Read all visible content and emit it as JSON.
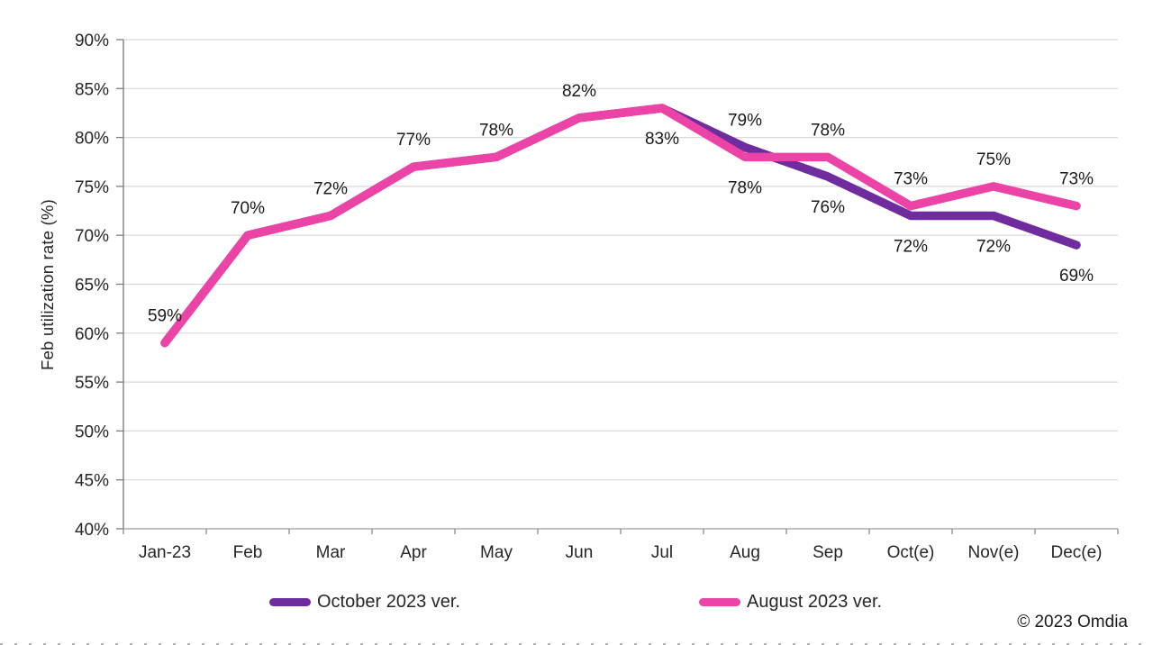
{
  "chart_data": {
    "type": "line",
    "title": "",
    "ylabel": "Feb utilization rate (%)",
    "xlabel": "",
    "categories": [
      "Jan-23",
      "Feb",
      "Mar",
      "Apr",
      "May",
      "Jun",
      "Jul",
      "Aug",
      "Sep",
      "Oct(e)",
      "Nov(e)",
      "Dec(e)"
    ],
    "series": [
      {
        "name": "October 2023 ver.",
        "color": "#6E2C9F",
        "values": [
          59,
          70,
          72,
          77,
          78,
          82,
          83,
          79,
          76,
          72,
          72,
          69
        ]
      },
      {
        "name": "August 2023 ver.",
        "color": "#EC44A6",
        "values": [
          59,
          70,
          72,
          77,
          78,
          82,
          83,
          78,
          78,
          73,
          75,
          73
        ]
      }
    ],
    "data_labels": [
      {
        "index": 0,
        "text": "59%",
        "series": "shared",
        "position": "above"
      },
      {
        "index": 1,
        "text": "70%",
        "series": "shared",
        "position": "above"
      },
      {
        "index": 2,
        "text": "72%",
        "series": "shared",
        "position": "above"
      },
      {
        "index": 3,
        "text": "77%",
        "series": "shared",
        "position": "above"
      },
      {
        "index": 4,
        "text": "78%",
        "series": "shared",
        "position": "above"
      },
      {
        "index": 5,
        "text": "82%",
        "series": "shared",
        "position": "above"
      },
      {
        "index": 6,
        "text": "83%",
        "series": "shared",
        "position": "below"
      },
      {
        "index": 7,
        "text": "79%",
        "series": 0,
        "position": "above"
      },
      {
        "index": 7,
        "text": "78%",
        "series": 1,
        "position": "below"
      },
      {
        "index": 8,
        "text": "78%",
        "series": 1,
        "position": "above"
      },
      {
        "index": 8,
        "text": "76%",
        "series": 0,
        "position": "below"
      },
      {
        "index": 9,
        "text": "73%",
        "series": 1,
        "position": "above"
      },
      {
        "index": 9,
        "text": "72%",
        "series": 0,
        "position": "below"
      },
      {
        "index": 10,
        "text": "75%",
        "series": 1,
        "position": "above"
      },
      {
        "index": 10,
        "text": "72%",
        "series": 0,
        "position": "below"
      },
      {
        "index": 11,
        "text": "73%",
        "series": 1,
        "position": "above"
      },
      {
        "index": 11,
        "text": "69%",
        "series": 0,
        "position": "below"
      }
    ],
    "y_tick_labels": [
      "90%",
      "85%",
      "80%",
      "75%",
      "70%",
      "65%",
      "60%",
      "55%",
      "50%",
      "45%",
      "40%"
    ],
    "ylim": [
      40,
      90
    ],
    "ytick_step": 5,
    "grid": "horizontal",
    "legend_position": "bottom"
  },
  "colors": {
    "gridline": "#D9D9D9",
    "axis_y": "#7F7F7F",
    "axis_x": "#ABABAB",
    "tick": "#8C8C8C",
    "tick_text": "#262626",
    "label_text": "#1A1A1A"
  },
  "footer": {
    "copyright": "© 2023 Omdia"
  }
}
